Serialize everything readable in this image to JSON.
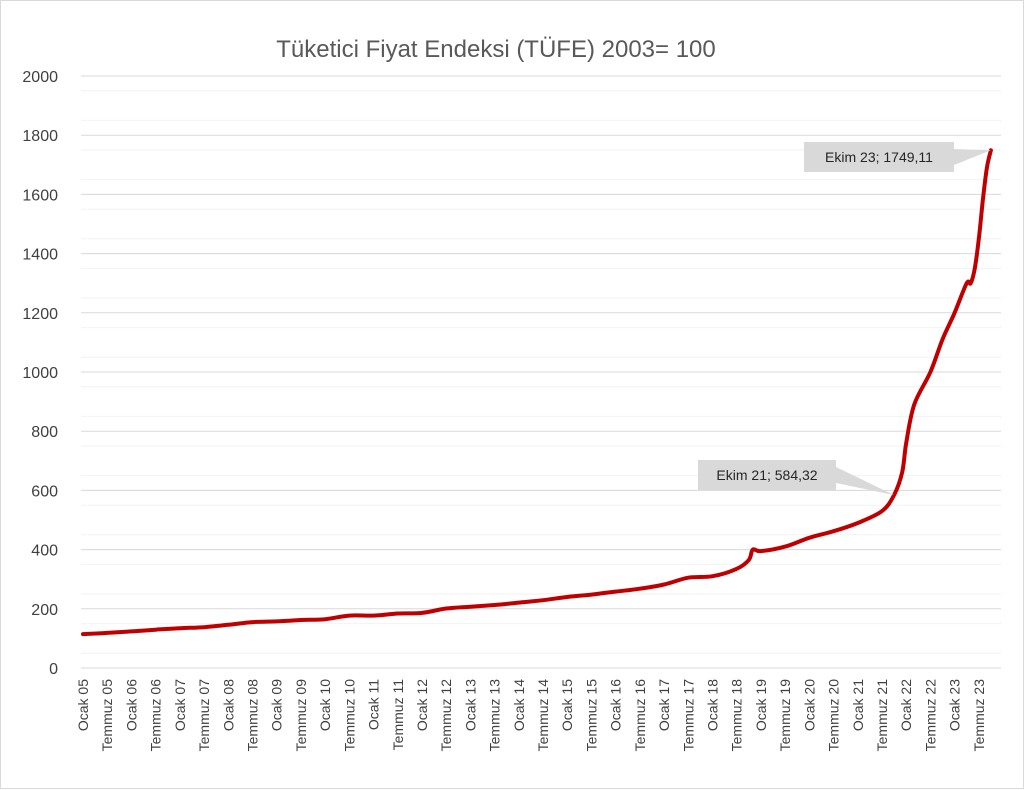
{
  "chart_data": {
    "type": "line",
    "title": "Tüketici Fiyat Endeksi (TÜFE) 2003= 100",
    "xlabel": "",
    "ylabel": "",
    "ylim": [
      0,
      2000
    ],
    "y_ticks": [
      "0",
      "200",
      "400",
      "600",
      "800",
      "1000",
      "1200",
      "1400",
      "1600",
      "1800",
      "2000"
    ],
    "grid": true,
    "legend": "none",
    "x_tick_labels": [
      "Ocak 05",
      "Temmuz 05",
      "Ocak 06",
      "Temmuz 06",
      "Ocak 07",
      "Temmuz 07",
      "Ocak 08",
      "Temmuz 08",
      "Ocak 09",
      "Temmuz 09",
      "Ocak 10",
      "Temmuz 10",
      "Ocak 11",
      "Temmuz 11",
      "Ocak 12",
      "Temmuz 12",
      "Ocak 13",
      "Temmuz 13",
      "Ocak 14",
      "Temmuz 14",
      "Ocak 15",
      "Temmuz 15",
      "Ocak 16",
      "Temmuz 16",
      "Ocak 17",
      "Temmuz 17",
      "Ocak 18",
      "Temmuz 18",
      "Ocak 19",
      "Temmuz 19",
      "Ocak 20",
      "Temmuz 20",
      "Ocak 21",
      "Temmuz 21",
      "Ocak 22",
      "Temmuz 22",
      "Ocak 23",
      "Temmuz 23"
    ],
    "series": [
      {
        "color": "#c00000",
        "points": [
          {
            "x": "2005-01",
            "y": 114.5
          },
          {
            "x": "2005-07",
            "y": 118.5
          },
          {
            "x": "2006-01",
            "y": 123.6
          },
          {
            "x": "2006-07",
            "y": 129.4
          },
          {
            "x": "2007-01",
            "y": 134.5
          },
          {
            "x": "2007-07",
            "y": 138.0
          },
          {
            "x": "2008-01",
            "y": 145.8
          },
          {
            "x": "2008-07",
            "y": 155.0
          },
          {
            "x": "2009-01",
            "y": 157.5
          },
          {
            "x": "2009-07",
            "y": 162.0
          },
          {
            "x": "2010-01",
            "y": 165.0
          },
          {
            "x": "2010-07",
            "y": 177.0
          },
          {
            "x": "2011-01",
            "y": 177.0
          },
          {
            "x": "2011-07",
            "y": 184.0
          },
          {
            "x": "2012-01",
            "y": 186.0
          },
          {
            "x": "2012-07",
            "y": 201.0
          },
          {
            "x": "2013-01",
            "y": 207.0
          },
          {
            "x": "2013-07",
            "y": 213.0
          },
          {
            "x": "2014-01",
            "y": 221.0
          },
          {
            "x": "2014-07",
            "y": 229.0
          },
          {
            "x": "2015-01",
            "y": 240.0
          },
          {
            "x": "2015-07",
            "y": 248.0
          },
          {
            "x": "2016-01",
            "y": 258.0
          },
          {
            "x": "2016-07",
            "y": 268.0
          },
          {
            "x": "2017-01",
            "y": 282.0
          },
          {
            "x": "2017-07",
            "y": 305.0
          },
          {
            "x": "2018-01",
            "y": 310.0
          },
          {
            "x": "2018-07",
            "y": 335.0
          },
          {
            "x": "2018-10",
            "y": 365.0
          },
          {
            "x": "2018-11",
            "y": 400.0
          },
          {
            "x": "2019-01",
            "y": 395.0
          },
          {
            "x": "2019-07",
            "y": 410.0
          },
          {
            "x": "2020-01",
            "y": 440.0
          },
          {
            "x": "2020-07",
            "y": 462.0
          },
          {
            "x": "2021-01",
            "y": 490.0
          },
          {
            "x": "2021-07",
            "y": 530.0
          },
          {
            "x": "2021-10",
            "y": 584.32
          },
          {
            "x": "2021-12",
            "y": 660.0
          },
          {
            "x": "2022-01",
            "y": 760.0
          },
          {
            "x": "2022-03",
            "y": 890.0
          },
          {
            "x": "2022-07",
            "y": 1000.0
          },
          {
            "x": "2022-10",
            "y": 1110.0
          },
          {
            "x": "2023-01",
            "y": 1200.0
          },
          {
            "x": "2023-04",
            "y": 1300.0
          },
          {
            "x": "2023-05",
            "y": 1300.0
          },
          {
            "x": "2023-06",
            "y": 1350.0
          },
          {
            "x": "2023-07",
            "y": 1450.0
          },
          {
            "x": "2023-08",
            "y": 1580.0
          },
          {
            "x": "2023-09",
            "y": 1690.0
          },
          {
            "x": "2023-10",
            "y": 1749.11
          }
        ]
      }
    ],
    "annotations": [
      {
        "x": "2021-10",
        "y": 584.32,
        "text": "Ekim 21; 584,32"
      },
      {
        "x": "2023-10",
        "y": 1749.11,
        "text": "Ekim 23; 1749,11"
      }
    ]
  }
}
